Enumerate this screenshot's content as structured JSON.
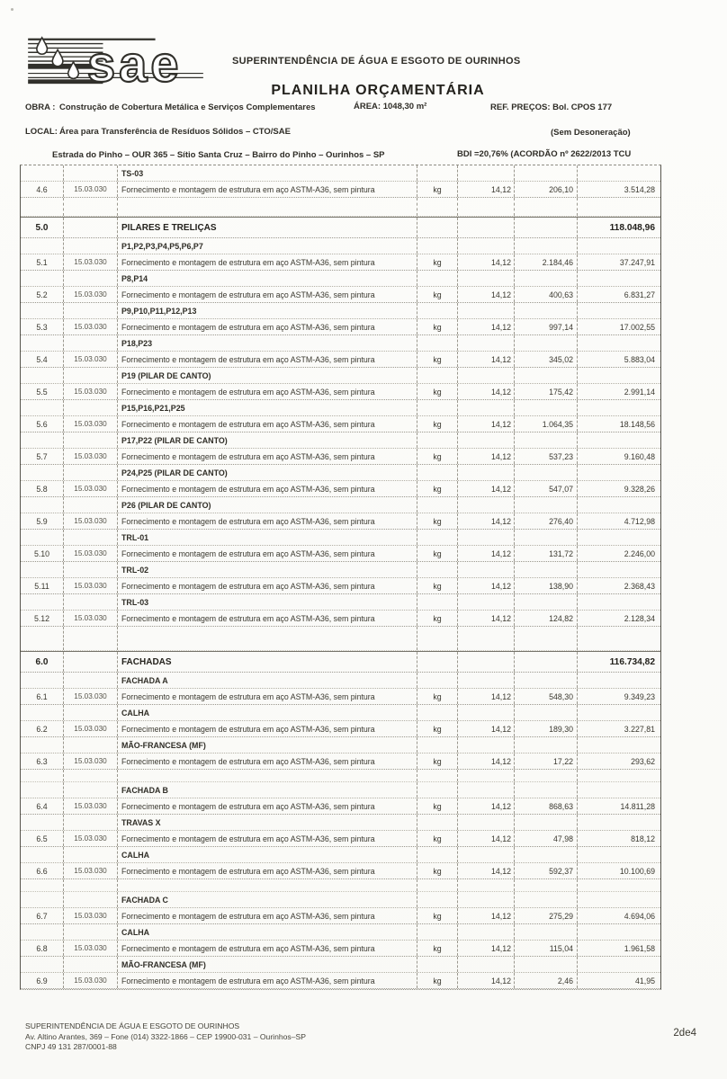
{
  "logo": {
    "text": "sae"
  },
  "header": {
    "org_name": "SUPERINTENDÊNCIA DE ÁGUA E ESGOTO DE OURINHOS",
    "doc_title": "PLANILHA ORÇAMENTÁRIA",
    "obra_label": "OBRA :",
    "obra_value": "Construção de Cobertura Metálica e Serviços Complementares",
    "area": "ÁREA: 1048,30 m²",
    "ref_precos": "REF.  PREÇOS: Bol. CPOS 177",
    "local_label": "LOCAL:",
    "local_value": "Área para Transferência de Resíduos Sólidos – CTO/SAE",
    "desoneracao": "(Sem Desoneração)",
    "address_line": "Estrada do Pinho – OUR 365 – Sítio Santa Cruz – Bairro do Pinho – Ourinhos – SP",
    "bdi": "BDI =20,76% (ACORDÃO nº 2622/2013 TCU"
  },
  "table": {
    "rows": [
      {
        "type": "sub",
        "desc": "TS-03"
      },
      {
        "type": "item",
        "num": "4.6",
        "code": "15.03.030",
        "desc": "Fornecimento e montagem de estrutura em aço ASTM-A36, sem pintura",
        "unit": "kg",
        "price": "14,12",
        "qty": "206,10",
        "total": "3.514,28"
      },
      {
        "type": "gap"
      },
      {
        "type": "section",
        "num": "5.0",
        "desc": "PILARES E TRELIÇAS",
        "total": "118.048,96"
      },
      {
        "type": "sub",
        "desc": "P1,P2,P3,P4,P5,P6,P7"
      },
      {
        "type": "item",
        "num": "5.1",
        "code": "15.03.030",
        "desc": "Fornecimento e montagem de estrutura em aço ASTM-A36, sem pintura",
        "unit": "kg",
        "price": "14,12",
        "qty": "2.184,46",
        "total": "37.247,91"
      },
      {
        "type": "sub",
        "desc": "P8,P14"
      },
      {
        "type": "item",
        "num": "5.2",
        "code": "15.03.030",
        "desc": "Fornecimento e montagem de estrutura em aço ASTM-A36, sem pintura",
        "unit": "kg",
        "price": "14,12",
        "qty": "400,63",
        "total": "6.831,27"
      },
      {
        "type": "sub",
        "desc": "P9,P10,P11,P12,P13"
      },
      {
        "type": "item",
        "num": "5.3",
        "code": "15.03.030",
        "desc": "Fornecimento e montagem de estrutura em aço ASTM-A36, sem pintura",
        "unit": "kg",
        "price": "14,12",
        "qty": "997,14",
        "total": "17.002,55"
      },
      {
        "type": "sub",
        "desc": "P18,P23"
      },
      {
        "type": "item",
        "num": "5.4",
        "code": "15.03.030",
        "desc": "Fornecimento e montagem de estrutura em aço ASTM-A36, sem pintura",
        "unit": "kg",
        "price": "14,12",
        "qty": "345,02",
        "total": "5.883,04"
      },
      {
        "type": "sub",
        "desc": "P19 (PILAR DE CANTO)"
      },
      {
        "type": "item",
        "num": "5.5",
        "code": "15.03.030",
        "desc": "Fornecimento e montagem de estrutura em aço ASTM-A36, sem pintura",
        "unit": "kg",
        "price": "14,12",
        "qty": "175,42",
        "total": "2.991,14"
      },
      {
        "type": "sub",
        "desc": "P15,P16,P21,P25"
      },
      {
        "type": "item",
        "num": "5.6",
        "code": "15.03.030",
        "desc": "Fornecimento e montagem de estrutura em aço ASTM-A36, sem pintura",
        "unit": "kg",
        "price": "14,12",
        "qty": "1.064,35",
        "total": "18.148,56"
      },
      {
        "type": "sub",
        "desc": "P17,P22 (PILAR DE CANTO)"
      },
      {
        "type": "item",
        "num": "5.7",
        "code": "15.03.030",
        "desc": "Fornecimento e montagem de estrutura em aço ASTM-A36, sem pintura",
        "unit": "kg",
        "price": "14,12",
        "qty": "537,23",
        "total": "9.160,48"
      },
      {
        "type": "sub",
        "desc": "P24,P25 (PILAR DE CANTO)"
      },
      {
        "type": "item",
        "num": "5.8",
        "code": "15.03.030",
        "desc": "Fornecimento e montagem de estrutura em aço ASTM-A36, sem pintura",
        "unit": "kg",
        "price": "14,12",
        "qty": "547,07",
        "total": "9.328,26"
      },
      {
        "type": "sub",
        "desc": "P26 (PILAR DE CANTO)"
      },
      {
        "type": "item",
        "num": "5.9",
        "code": "15.03.030",
        "desc": "Fornecimento e montagem de estrutura em aço ASTM-A36, sem pintura",
        "unit": "kg",
        "price": "14,12",
        "qty": "276,40",
        "total": "4.712,98"
      },
      {
        "type": "sub",
        "desc": "TRL-01"
      },
      {
        "type": "item",
        "num": "5.10",
        "code": "15.03.030",
        "desc": "Fornecimento e montagem de estrutura em aço ASTM-A36, sem pintura",
        "unit": "kg",
        "price": "14,12",
        "qty": "131,72",
        "total": "2.246,00"
      },
      {
        "type": "sub",
        "desc": "TRL-02"
      },
      {
        "type": "item",
        "num": "5.11",
        "code": "15.03.030",
        "desc": "Fornecimento e montagem de estrutura em aço ASTM-A36, sem pintura",
        "unit": "kg",
        "price": "14,12",
        "qty": "138,90",
        "total": "2.368,43"
      },
      {
        "type": "sub",
        "desc": "TRL-03"
      },
      {
        "type": "item",
        "num": "5.12",
        "code": "15.03.030",
        "desc": "Fornecimento e montagem de estrutura em aço ASTM-A36, sem pintura",
        "unit": "kg",
        "price": "14,12",
        "qty": "124,82",
        "total": "2.128,34"
      },
      {
        "type": "gap-lg"
      },
      {
        "type": "section",
        "num": "6.0",
        "desc": "FACHADAS",
        "total": "116.734,82"
      },
      {
        "type": "sub",
        "desc": "FACHADA A"
      },
      {
        "type": "item",
        "num": "6.1",
        "code": "15.03.030",
        "desc": "Fornecimento e montagem de estrutura em aço ASTM-A36, sem pintura",
        "unit": "kg",
        "price": "14,12",
        "qty": "548,30",
        "total": "9.349,23"
      },
      {
        "type": "sub",
        "desc": "CALHA"
      },
      {
        "type": "item",
        "num": "6.2",
        "code": "15.03.030",
        "desc": "Fornecimento e montagem de estrutura em aço ASTM-A36, sem pintura",
        "unit": "kg",
        "price": "14,12",
        "qty": "189,30",
        "total": "3.227,81"
      },
      {
        "type": "sub",
        "desc": "MÃO-FRANCESA (MF)"
      },
      {
        "type": "item",
        "num": "6.3",
        "code": "15.03.030",
        "desc": "Fornecimento e montagem de estrutura em aço ASTM-A36, sem pintura",
        "unit": "kg",
        "price": "14,12",
        "qty": "17,22",
        "total": "293,62"
      },
      {
        "type": "gap-sm"
      },
      {
        "type": "sub",
        "desc": "FACHADA B"
      },
      {
        "type": "item",
        "num": "6.4",
        "code": "15.03.030",
        "desc": "Fornecimento e montagem de estrutura em aço ASTM-A36, sem pintura",
        "unit": "kg",
        "price": "14,12",
        "qty": "868,63",
        "total": "14.811,28"
      },
      {
        "type": "sub",
        "desc": "TRAVAS X"
      },
      {
        "type": "item",
        "num": "6.5",
        "code": "15.03.030",
        "desc": "Fornecimento e montagem de estrutura em aço ASTM-A36, sem pintura",
        "unit": "kg",
        "price": "14,12",
        "qty": "47,98",
        "total": "818,12"
      },
      {
        "type": "sub",
        "desc": "CALHA"
      },
      {
        "type": "item",
        "num": "6.6",
        "code": "15.03.030",
        "desc": "Fornecimento e montagem de estrutura em aço ASTM-A36, sem pintura",
        "unit": "kg",
        "price": "14,12",
        "qty": "592,37",
        "total": "10.100,69"
      },
      {
        "type": "gap-sm"
      },
      {
        "type": "sub",
        "desc": "FACHADA C"
      },
      {
        "type": "item",
        "num": "6.7",
        "code": "15.03.030",
        "desc": "Fornecimento e montagem de estrutura em aço ASTM-A36, sem pintura",
        "unit": "kg",
        "price": "14,12",
        "qty": "275,29",
        "total": "4.694,06"
      },
      {
        "type": "sub",
        "desc": "CALHA"
      },
      {
        "type": "item",
        "num": "6.8",
        "code": "15.03.030",
        "desc": "Fornecimento e montagem de estrutura em aço ASTM-A36, sem pintura",
        "unit": "kg",
        "price": "14,12",
        "qty": "115,04",
        "total": "1.961,58"
      },
      {
        "type": "sub",
        "desc": "MÃO-FRANCESA (MF)"
      },
      {
        "type": "item",
        "num": "6.9",
        "code": "15.03.030",
        "desc": "Fornecimento e montagem de estrutura em aço ASTM-A36, sem pintura",
        "unit": "kg",
        "price": "14,12",
        "qty": "2,46",
        "total": "41,95"
      }
    ]
  },
  "footer": {
    "org": "SUPERINTENDÊNCIA DE ÁGUA E ESGOTO DE OURINHOS",
    "address": "Av. Altino Arantes, 369 – Fone (014) 3322-1866 – CEP 19900-031 – Ourinhos–SP",
    "cnpj": "CNPJ 49 131 287/0001-88",
    "page": "2de4"
  }
}
